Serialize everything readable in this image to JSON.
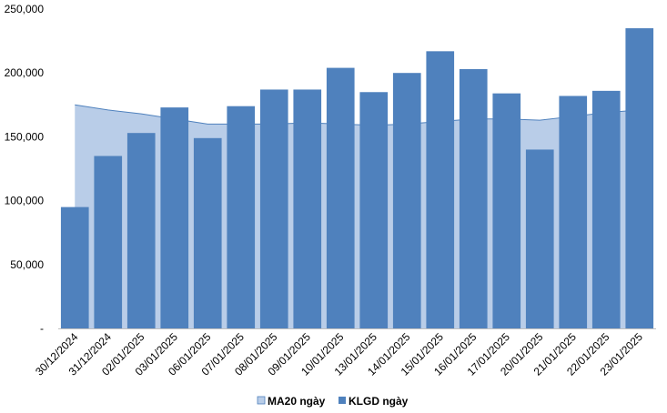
{
  "chart_data": {
    "type": "bar",
    "title": "",
    "xlabel": "",
    "ylabel": "",
    "categories": [
      "30/12/2024",
      "31/12/2024",
      "02/01/2025",
      "03/01/2025",
      "06/01/2025",
      "07/01/2025",
      "08/01/2025",
      "09/01/2025",
      "10/01/2025",
      "13/01/2025",
      "14/01/2025",
      "15/01/2025",
      "16/01/2025",
      "17/01/2025",
      "20/01/2025",
      "21/01/2025",
      "22/01/2025",
      "23/01/2025"
    ],
    "ylim": [
      0,
      250000
    ],
    "yticks": [
      0,
      50000,
      100000,
      150000,
      200000,
      250000
    ],
    "ytick_labels": [
      "-",
      "50,000",
      "100,000",
      "150,000",
      "200,000",
      "250,000"
    ],
    "grid": false,
    "legend_position": "bottom",
    "series": [
      {
        "name": "MA20 ngày",
        "type": "area",
        "color": "#b9cde8",
        "line_color": "#4f81bd",
        "values": [
          175000,
          171000,
          168000,
          164000,
          160000,
          160000,
          160000,
          161000,
          160000,
          159000,
          160000,
          162000,
          164000,
          164000,
          163000,
          166000,
          169000,
          171000
        ]
      },
      {
        "name": "KLGD ngày",
        "type": "bar",
        "color": "#4f81bd",
        "values": [
          95000,
          135000,
          153000,
          173000,
          149000,
          174000,
          187000,
          187000,
          204000,
          185000,
          200000,
          217000,
          203000,
          184000,
          140000,
          182000,
          186000,
          235000
        ]
      }
    ]
  }
}
